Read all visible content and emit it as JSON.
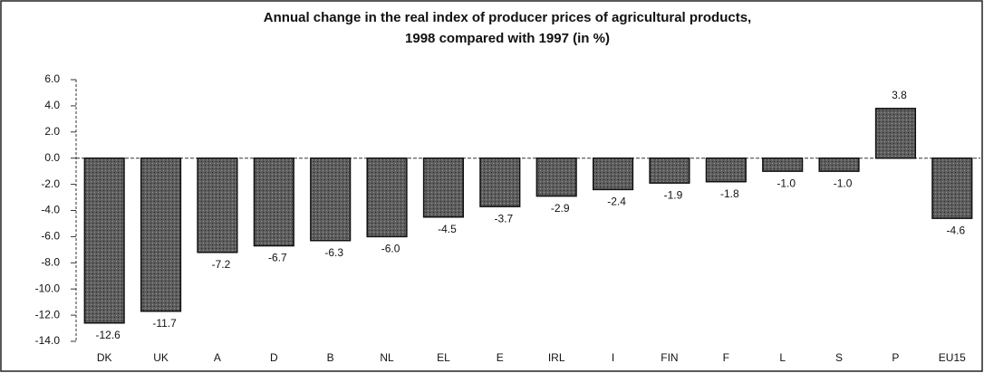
{
  "chart_data": {
    "type": "bar",
    "title": [
      "Annual change in the real index of producer prices of agricultural products,",
      "1998 compared with 1997 (in %)"
    ],
    "categories": [
      "DK",
      "UK",
      "A",
      "D",
      "B",
      "NL",
      "EL",
      "E",
      "IRL",
      "I",
      "FIN",
      "F",
      "L",
      "S",
      "P",
      "EU15"
    ],
    "values": [
      -12.6,
      -11.7,
      -7.2,
      -6.7,
      -6.3,
      -6.0,
      -4.5,
      -3.7,
      -2.9,
      -2.4,
      -1.9,
      -1.8,
      -1.0,
      -1.0,
      3.8,
      -4.6
    ],
    "value_labels": [
      "-12.6",
      "-11.7",
      "-7.2",
      "-6.7",
      "-6.3",
      "-6.0",
      "-4.5",
      "-3.7",
      "-2.9",
      "-2.4",
      "-1.9",
      "-1.8",
      "-1.0",
      "-1.0",
      "3.8",
      "-4.6"
    ],
    "color": "#5e5e5e",
    "ylim": [
      -14,
      6
    ],
    "yticks": [
      {
        "value": 6,
        "label": "6.0"
      },
      {
        "value": 4,
        "label": "4.0"
      },
      {
        "value": 2,
        "label": "2.0"
      },
      {
        "value": 0,
        "label": "0.0"
      },
      {
        "value": -2,
        "label": "-2.0"
      },
      {
        "value": -4,
        "label": "-4.0"
      },
      {
        "value": -6,
        "label": "-6.0"
      },
      {
        "value": -8,
        "label": "-8.0"
      },
      {
        "value": -10,
        "label": "-10.0"
      },
      {
        "value": -12,
        "label": "-12.0"
      },
      {
        "value": -14,
        "label": "-14.0"
      }
    ],
    "grid": false
  }
}
